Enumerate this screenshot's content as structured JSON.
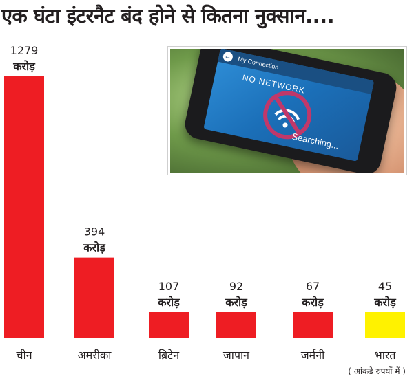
{
  "title": "एक घंटा इंटरनैट बंद होने से कितना नुक्सान....",
  "footnote": "( आंकड़े रुपयों में )",
  "colors": {
    "bar": "#ee1d23",
    "highlight": "#fff200",
    "text": "#231f20"
  },
  "photo": {
    "screen_title": "My Connection",
    "status": "NO NETWORK",
    "searching": "Searching...",
    "icons": [
      "back-arrow-icon",
      "no-wifi-icon"
    ]
  },
  "chart_data": {
    "type": "bar",
    "title": "एक घंटा इंटरनैट बंद होने से कितना नुक्सान....",
    "categories": [
      "चीन",
      "अमरीका",
      "ब्रिटेन",
      "जापान",
      "जर्मनी",
      "भारत"
    ],
    "values": [
      1279,
      394,
      107,
      92,
      67,
      45
    ],
    "unit": "करोड़",
    "note": "( आंकड़े रुपयों में )",
    "highlight_category": "भारत",
    "xlabel": "",
    "ylabel": "",
    "grid": false,
    "legend": "none"
  }
}
